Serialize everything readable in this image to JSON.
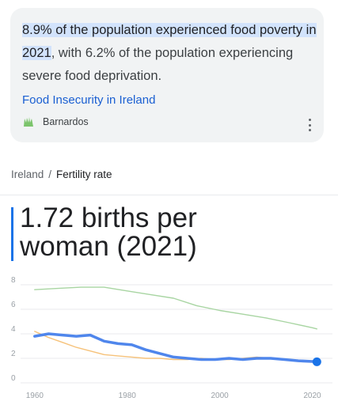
{
  "snippet": {
    "highlight": "8.9% of the population experienced food poverty in 2021",
    "rest": ", with 6.2% of the population experiencing severe food deprivation.",
    "source_title": "Food Insecurity in Ireland",
    "source_name": "Barnardos",
    "logo_icon": "barnardos-logo-icon",
    "menu_icon": "more-vert-icon"
  },
  "breadcrumb": {
    "country": "Ireland",
    "separator": "/",
    "metric": "Fertility rate"
  },
  "stat": {
    "line1": "1.72 births per",
    "line2": "woman (2021)"
  },
  "colors": {
    "accent": "#1a73e8",
    "highlight": "#d2e3fc",
    "world_line": "#a8d5a2",
    "comparison_line": "#f6c27a",
    "ireland_line": "#4f86ec"
  },
  "chart_data": {
    "type": "line",
    "x_ticks": [
      "1960",
      "1980",
      "2000",
      "2020"
    ],
    "y_ticks": [
      "0",
      "2",
      "4",
      "6",
      "8"
    ],
    "xlim": [
      1959,
      2023
    ],
    "ylim": [
      0,
      8
    ],
    "grid": true,
    "series": [
      {
        "key": "world",
        "color": "#a8d5a2",
        "x": [
          1960,
          1965,
          1970,
          1975,
          1980,
          1985,
          1990,
          1995,
          2000,
          2005,
          2010,
          2015,
          2020,
          2021
        ],
        "values": [
          7.6,
          7.7,
          7.8,
          7.8,
          7.5,
          7.2,
          6.9,
          6.3,
          5.9,
          5.6,
          5.3,
          4.9,
          4.5,
          4.4
        ]
      },
      {
        "key": "comparison",
        "color": "#f6c27a",
        "x": [
          1960,
          1963,
          1966,
          1969,
          1972,
          1975,
          1978,
          1981,
          1984,
          1987,
          1990,
          1993,
          1996,
          1999,
          2002,
          2005,
          2008,
          2011,
          2014,
          2017,
          2021
        ],
        "values": [
          4.2,
          3.7,
          3.3,
          2.9,
          2.6,
          2.3,
          2.2,
          2.1,
          2.0,
          2.0,
          1.9,
          1.9,
          2.0,
          1.9,
          1.9,
          2.0,
          2.1,
          2.0,
          1.9,
          1.8,
          1.7
        ]
      },
      {
        "key": "ireland",
        "color": "#4f86ec",
        "x": [
          1960,
          1963,
          1966,
          1969,
          1972,
          1975,
          1978,
          1981,
          1984,
          1987,
          1990,
          1993,
          1996,
          1999,
          2002,
          2005,
          2008,
          2011,
          2014,
          2017,
          2021
        ],
        "values": [
          3.8,
          4.0,
          3.9,
          3.8,
          3.9,
          3.4,
          3.2,
          3.1,
          2.7,
          2.4,
          2.1,
          2.0,
          1.9,
          1.9,
          2.0,
          1.9,
          2.0,
          2.0,
          1.9,
          1.8,
          1.72
        ]
      }
    ],
    "highlight_point": {
      "x": 2021,
      "y": 1.72
    }
  }
}
